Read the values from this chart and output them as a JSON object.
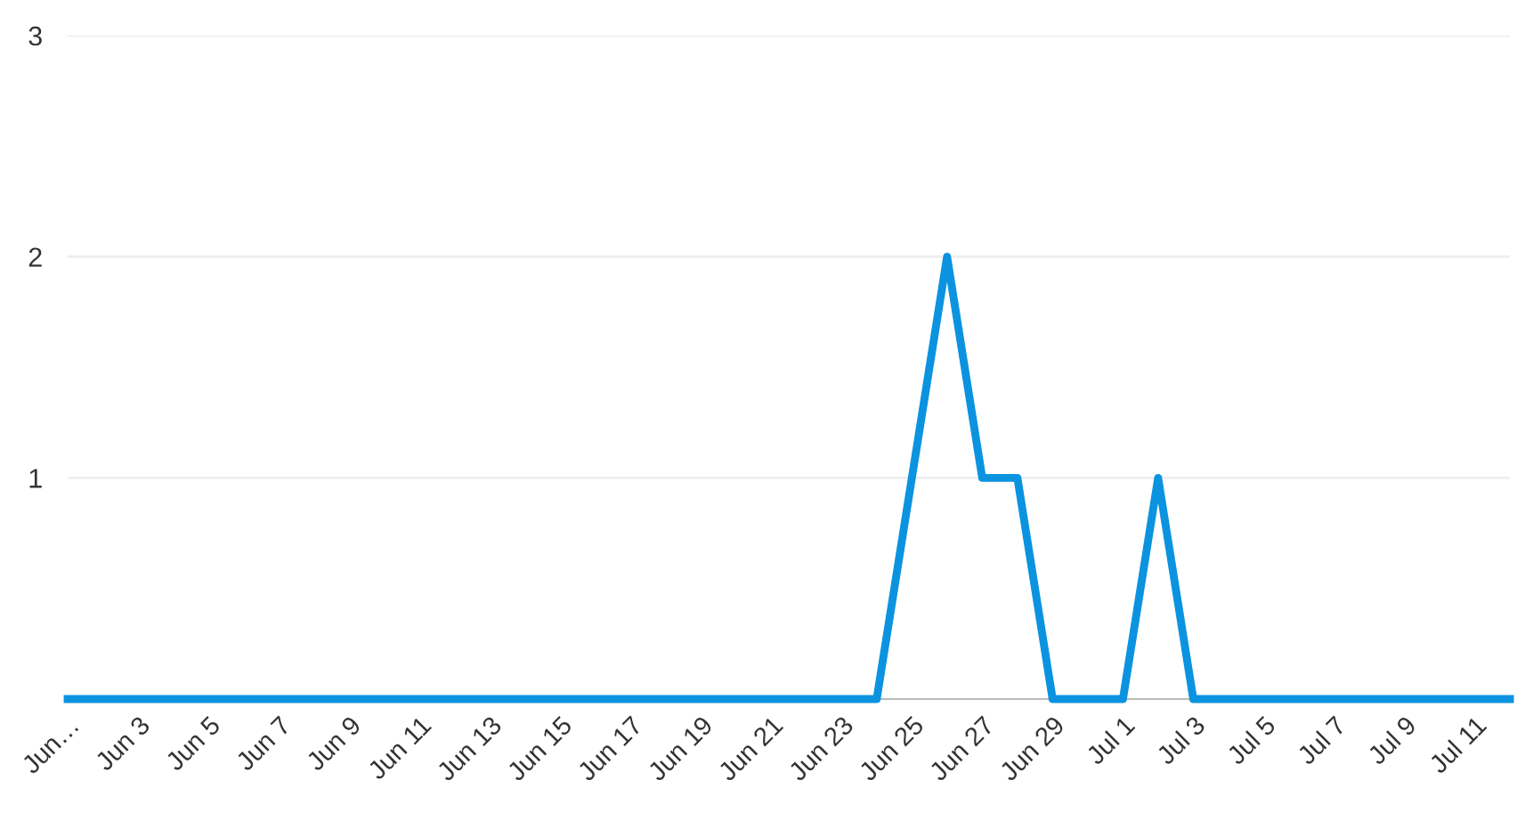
{
  "chart_data": {
    "type": "line",
    "categories": [
      "Jun…",
      null,
      "Jun 3",
      null,
      "Jun 5",
      null,
      "Jun 7",
      null,
      "Jun 9",
      null,
      "Jun 11",
      null,
      "Jun 13",
      null,
      "Jun 15",
      null,
      "Jun 17",
      null,
      "Jun 19",
      null,
      "Jun 21",
      null,
      "Jun 23",
      null,
      "Jun 25",
      null,
      "Jun 27",
      null,
      "Jun 29",
      null,
      "Jul 1",
      null,
      "Jul 3",
      null,
      "Jul 5",
      null,
      "Jul 7",
      null,
      "Jul 9",
      null,
      "Jul 11",
      null
    ],
    "series": [
      {
        "color": "#0b93e0",
        "values": [
          0,
          0,
          0,
          0,
          0,
          0,
          0,
          0,
          0,
          0,
          0,
          0,
          0,
          0,
          0,
          0,
          0,
          0,
          0,
          0,
          0,
          0,
          0,
          0,
          1,
          2,
          1,
          1,
          0,
          0,
          0,
          1,
          0,
          0,
          0,
          0,
          0,
          0,
          0,
          0,
          0,
          0
        ]
      }
    ],
    "ylim": [
      0,
      3
    ],
    "yticks": [
      1,
      2,
      3
    ],
    "grid": "y",
    "marker": "none",
    "line_style": "solid"
  }
}
